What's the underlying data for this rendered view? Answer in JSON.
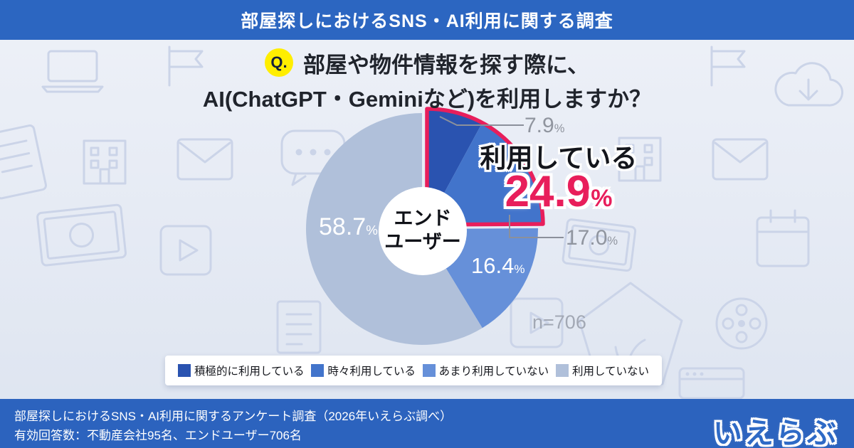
{
  "header": {
    "title": "部屋探しにおけるSNS・AI利用に関する調査"
  },
  "question": {
    "badge": "Q.",
    "line1": "部屋や物件情報を探す際に、",
    "line2": "AI(ChatGPT・Geminiなど)を利用しますか？"
  },
  "chart_data": {
    "type": "pie",
    "title": "部屋や物件情報を探す際にAIを利用しますか？（エンドユーザー）",
    "center_label_1": "エンド",
    "center_label_2": "ユーザー",
    "sample_size": "n=706",
    "percent_sign": "%",
    "legend_position": "bottom",
    "segments": [
      {
        "label": "積極的に利用している",
        "value": 7.9,
        "pct_text": "7.9",
        "color": "#2a53b0"
      },
      {
        "label": "時々利用している",
        "value": 17.0,
        "pct_text": "17.0",
        "color": "#4274cb"
      },
      {
        "label": "あまり利用していない",
        "value": 16.4,
        "pct_text": "16.4",
        "color": "#6690d9"
      },
      {
        "label": "利用していない",
        "value": 58.7,
        "pct_text": "58.7",
        "color": "#b0c0da"
      }
    ],
    "highlight": {
      "label": "利用している",
      "value": 24.9,
      "pct_text": "24.9",
      "segment_indices": [
        0,
        1
      ],
      "color": "#e81e5b"
    }
  },
  "footer": {
    "line1": "部屋探しにおけるSNS・AI利用に関するアンケート調査（2026年いえらぶ調べ）",
    "line2": "有効回答数：不動産会社95名、エンドユーザー706名",
    "logo_text": "いえらぶ"
  },
  "background": {
    "watermark_icons": [
      "laptop-icon",
      "flag-icon",
      "building-icon",
      "envelope-icon",
      "memo-icon",
      "money-icon",
      "play-video-icon",
      "chat-bubble-icon",
      "cloud-download-icon",
      "calendar-icon",
      "pentagon-badge-icon",
      "film-reel-icon",
      "document-icon",
      "browser-window-icon"
    ]
  }
}
